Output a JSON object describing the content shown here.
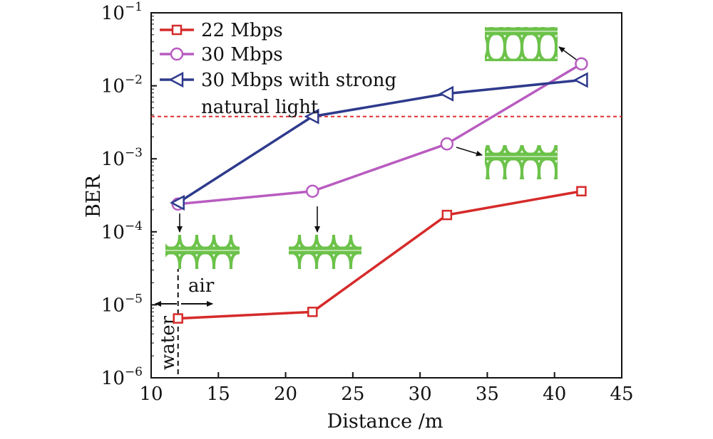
{
  "chart_data": {
    "type": "line",
    "xlabel": "Distance /m",
    "ylabel": "BER",
    "xlim": [
      10,
      45
    ],
    "ylim": [
      1e-06,
      0.1
    ],
    "y_scale": "log",
    "x_ticks": [
      "10",
      "15",
      "20",
      "25",
      "30",
      "35",
      "40",
      "45"
    ],
    "y_ticks": [
      {
        "base": "10",
        "exp": "−6",
        "value": 1e-06
      },
      {
        "base": "10",
        "exp": "−5",
        "value": 1e-05
      },
      {
        "base": "10",
        "exp": "−4",
        "value": 0.0001
      },
      {
        "base": "10",
        "exp": "−3",
        "value": 0.001
      },
      {
        "base": "10",
        "exp": "−2",
        "value": 0.01
      },
      {
        "base": "10",
        "exp": "−1",
        "value": 0.1
      }
    ],
    "series": [
      {
        "name": "22 Mbps",
        "color": "#d62a2a",
        "marker": "square",
        "x": [
          12,
          22,
          32,
          42
        ],
        "y": [
          6.5e-06,
          8e-06,
          0.00017,
          0.00036
        ]
      },
      {
        "name": "30 Mbps",
        "color": "#b85cc0",
        "marker": "circle",
        "x": [
          12,
          22,
          32,
          42
        ],
        "y": [
          0.00024,
          0.00036,
          0.0016,
          0.02
        ]
      },
      {
        "name": "30 Mbps with strong natural light",
        "name_lines": [
          "30 Mbps with strong",
          "natural light"
        ],
        "color": "#2e3a8c",
        "marker": "triangle-left",
        "x": [
          12,
          22,
          32,
          42
        ],
        "y": [
          0.00025,
          0.0038,
          0.0078,
          0.012
        ]
      }
    ],
    "threshold": {
      "y": 0.0038,
      "color": "#e03030",
      "style": "dashed"
    },
    "boundary": {
      "x": 12,
      "left_label": "water",
      "right_label": "air"
    },
    "eye_diagram_color": "#6cc24a",
    "grid": false,
    "legend_position": "top-left"
  }
}
